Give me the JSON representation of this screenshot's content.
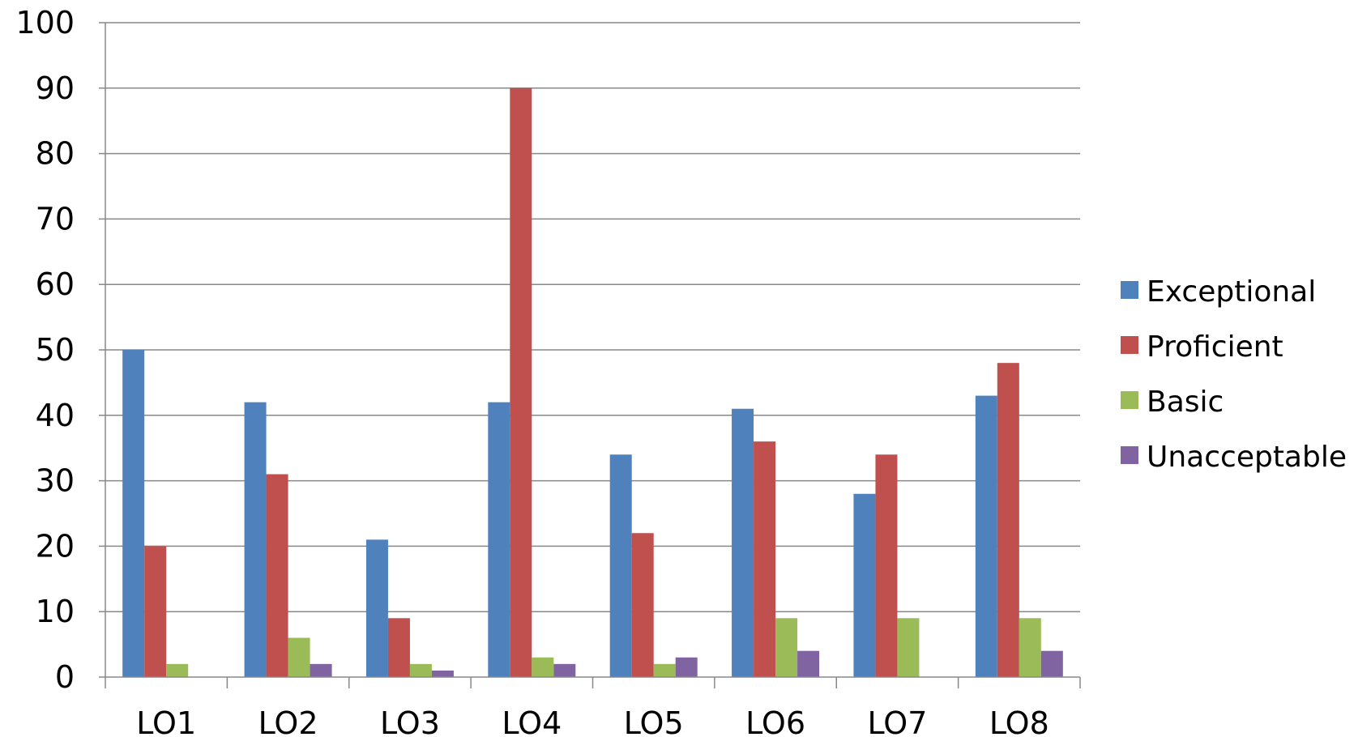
{
  "chart_data": {
    "type": "bar",
    "title": "",
    "xlabel": "",
    "ylabel": "",
    "categories": [
      "LO1",
      "LO2",
      "LO3",
      "LO4",
      "LO5",
      "LO6",
      "LO7",
      "LO8"
    ],
    "series": [
      {
        "name": "Exceptional",
        "color": "#4F81BD",
        "values": [
          50,
          42,
          21,
          42,
          34,
          41,
          28,
          43
        ]
      },
      {
        "name": "Proficient",
        "color": "#C0504D",
        "values": [
          20,
          31,
          9,
          90,
          22,
          36,
          34,
          48
        ]
      },
      {
        "name": "Basic",
        "color": "#9BBB59",
        "values": [
          2,
          6,
          2,
          3,
          2,
          9,
          9,
          9
        ]
      },
      {
        "name": "Unacceptable",
        "color": "#8064A2",
        "values": [
          0,
          2,
          1,
          2,
          3,
          4,
          0,
          4
        ]
      }
    ],
    "ylim": [
      0,
      100
    ],
    "yticks": [
      0,
      10,
      20,
      30,
      40,
      50,
      60,
      70,
      80,
      90,
      100
    ],
    "grid": true,
    "legend_position": "right"
  }
}
